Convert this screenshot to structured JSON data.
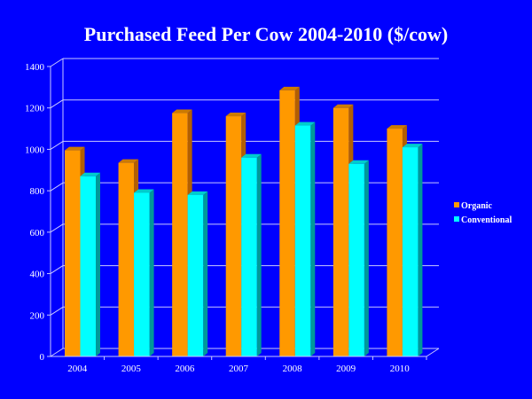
{
  "chart_data": {
    "type": "bar",
    "title": "Purchased Feed Per Cow 2004-2010 ($/cow)",
    "xlabel": "",
    "ylabel": "",
    "categories": [
      "2004",
      "2005",
      "2006",
      "2007",
      "2008",
      "2009",
      "2010"
    ],
    "series": [
      {
        "name": "Organic",
        "color": "#ff9900",
        "values": [
          995,
          935,
          1175,
          1160,
          1285,
          1200,
          1100
        ]
      },
      {
        "name": "Conventional",
        "color": "#00ffff",
        "values": [
          870,
          790,
          780,
          960,
          1115,
          930,
          1010
        ]
      }
    ],
    "ylim": [
      0,
      1400
    ],
    "yticks": [
      "0",
      "200",
      "400",
      "600",
      "800",
      "1000",
      "1200",
      "1400"
    ],
    "grid": true,
    "style": "3d-clustered-column",
    "legend": "right",
    "background": "#0000ff"
  }
}
